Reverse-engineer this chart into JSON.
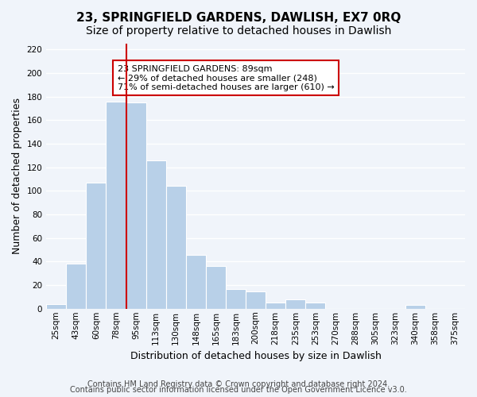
{
  "title": "23, SPRINGFIELD GARDENS, DAWLISH, EX7 0RQ",
  "subtitle": "Size of property relative to detached houses in Dawlish",
  "xlabel": "Distribution of detached houses by size in Dawlish",
  "ylabel": "Number of detached properties",
  "bar_color": "#b8d0e8",
  "bar_edge_color": "#ffffff",
  "bar_values": [
    4,
    38,
    107,
    176,
    175,
    126,
    104,
    46,
    36,
    17,
    15,
    5,
    8,
    5,
    0,
    0,
    0,
    0,
    3,
    0
  ],
  "bar_labels": [
    "25sqm",
    "43sqm",
    "60sqm",
    "78sqm",
    "95sqm",
    "113sqm",
    "130sqm",
    "148sqm",
    "165sqm",
    "183sqm",
    "200sqm",
    "218sqm",
    "235sqm",
    "253sqm",
    "270sqm",
    "288sqm",
    "305sqm",
    "323sqm",
    "340sqm",
    "358sqm"
  ],
  "extra_label": "375sqm",
  "vline_index": 3.5,
  "vline_color": "#cc0000",
  "annotation_title": "23 SPRINGFIELD GARDENS: 89sqm",
  "annotation_line1": "← 29% of detached houses are smaller (248)",
  "annotation_line2": "71% of semi-detached houses are larger (610) →",
  "annotation_box_color": "#ffffff",
  "annotation_box_edge": "#cc0000",
  "ylim": [
    0,
    225
  ],
  "yticks": [
    0,
    20,
    40,
    60,
    80,
    100,
    120,
    140,
    160,
    180,
    200,
    220
  ],
  "footer_line1": "Contains HM Land Registry data © Crown copyright and database right 2024.",
  "footer_line2": "Contains public sector information licensed under the Open Government Licence v3.0.",
  "background_color": "#f0f4fa",
  "grid_color": "#ffffff",
  "title_fontsize": 11,
  "subtitle_fontsize": 10,
  "axis_label_fontsize": 9,
  "tick_fontsize": 7.5,
  "footer_fontsize": 7
}
